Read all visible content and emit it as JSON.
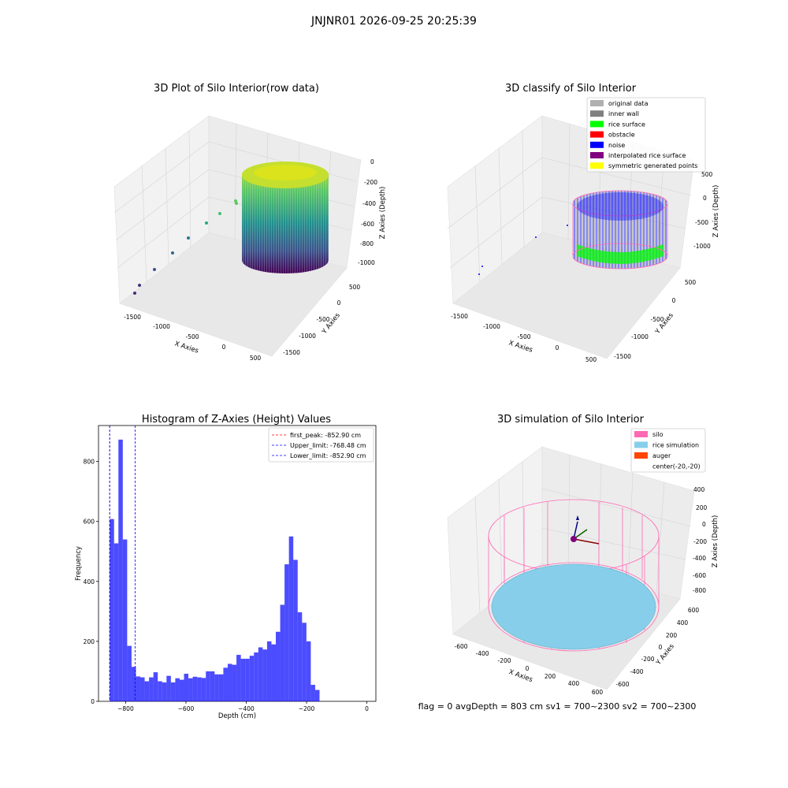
{
  "suptitle": "JNJNR01 2026-09-25 20:25:39",
  "status": "flag = 0     avgDepth = 803 cm  sv1 = 700~2300  sv2 = 700~2300",
  "panels": {
    "raw": {
      "title": "3D Plot of Silo Interior(row data)",
      "xlabel": "X Axies",
      "ylabel": "Y Axies",
      "zlabel": "Z Axies (Depth)",
      "xticks": [
        "-1500",
        "-1000",
        "-500",
        "0",
        "500"
      ],
      "yticks": [
        "500",
        "0",
        "-500",
        "-1000",
        "-1500"
      ],
      "zticks": [
        "0",
        "-200",
        "-400",
        "-600",
        "-800",
        "-1000"
      ]
    },
    "classify": {
      "title": "3D classify of Silo Interior",
      "xlabel": "X Axies",
      "ylabel": "Y Axies",
      "zlabel": "Z Axies (Depth)",
      "xticks": [
        "-1500",
        "-1000",
        "-500",
        "0",
        "500"
      ],
      "yticks": [
        "500",
        "0",
        "-500",
        "-1000",
        "-1500"
      ],
      "zticks": [
        "500",
        "0",
        "-500",
        "-1000"
      ],
      "legend": [
        {
          "label": "original data",
          "color": "#b0b0b0"
        },
        {
          "label": "inner wall",
          "color": "#808080"
        },
        {
          "label": "rice surface",
          "color": "#00ff00"
        },
        {
          "label": "obstacle",
          "color": "#ff0000"
        },
        {
          "label": "noise",
          "color": "#0000ff"
        },
        {
          "label": "interpolated rice surface",
          "color": "#800080"
        },
        {
          "label": "symmetric generated points",
          "color": "#ffff00"
        }
      ]
    },
    "simulation": {
      "title": "3D simulation of Silo Interior",
      "xlabel": "X Axies",
      "ylabel": "Y Axies",
      "zlabel": "Z Axies (Depth)",
      "xticks": [
        "-600",
        "-400",
        "-200",
        "0",
        "200",
        "400",
        "600"
      ],
      "yticks": [
        "600",
        "400",
        "200",
        "0",
        "-200",
        "-400",
        "-600"
      ],
      "zticks": [
        "400",
        "200",
        "0",
        "-200",
        "-400",
        "-600",
        "-800"
      ],
      "legend": [
        {
          "label": "silo",
          "color": "#ff69b4"
        },
        {
          "label": "rice simulation",
          "color": "#87ceeb"
        },
        {
          "label": "auger",
          "color": "#ff4500"
        },
        {
          "label": "center(-20,-20)",
          "color": ""
        }
      ]
    }
  },
  "chart_data": {
    "type": "bar",
    "title": "Histogram of Z-Axies (Height) Values",
    "xlabel": "Depth (cm)",
    "ylabel": "Frequency",
    "xlim": [
      -890,
      30
    ],
    "ylim": [
      0,
      920
    ],
    "xticks": [
      -800,
      -600,
      -400,
      -200,
      0
    ],
    "yticks": [
      0,
      200,
      400,
      600,
      800
    ],
    "bin_width": 14.5,
    "bin_start": -852.9,
    "counts": [
      608,
      527,
      873,
      540,
      185,
      115,
      83,
      80,
      67,
      80,
      97,
      67,
      63,
      85,
      63,
      77,
      72,
      92,
      77,
      82,
      80,
      78,
      100,
      100,
      90,
      90,
      112,
      125,
      122,
      155,
      142,
      142,
      152,
      163,
      180,
      173,
      200,
      190,
      232,
      322,
      457,
      550,
      472,
      297,
      262,
      200,
      55,
      38
    ],
    "bar_color": "#0000ff",
    "bar_alpha": 0.7,
    "lines": [
      {
        "label": "first_peak: -852.90 cm",
        "x": -852.9,
        "color": "#ff0000"
      },
      {
        "label": "Upper_limit: -768.48 cm",
        "x": -768.48,
        "color": "#0000ff"
      },
      {
        "label": "Lower_limit: -852.90 cm",
        "x": -852.9,
        "color": "#0000ff"
      }
    ],
    "legend_position": "upper right"
  }
}
